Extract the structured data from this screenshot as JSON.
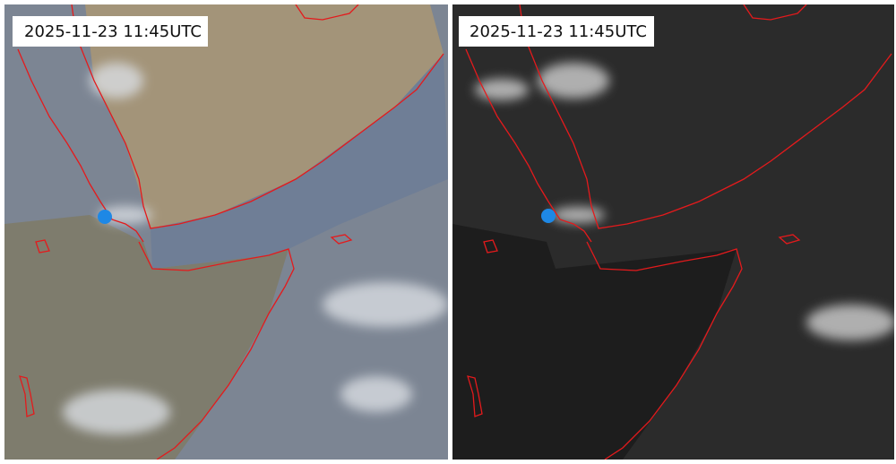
{
  "panels": [
    {
      "timestamp": "2025-11-23 11:45UTC"
    },
    {
      "timestamp": "2025-11-23 11:45UTC"
    }
  ]
}
